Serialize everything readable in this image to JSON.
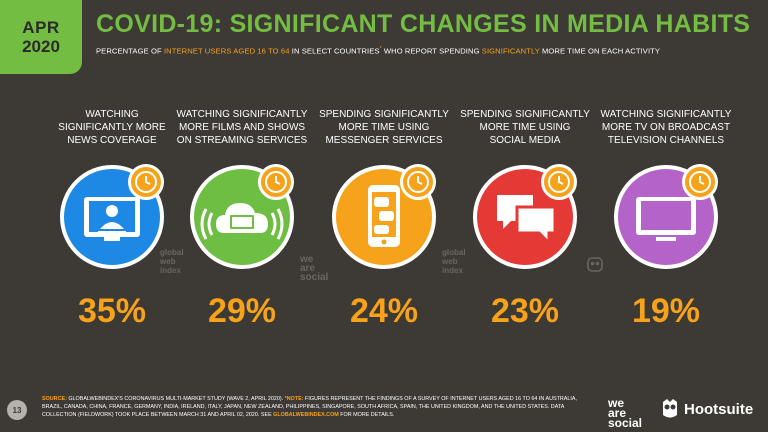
{
  "badge": {
    "month": "APR",
    "year": "2020"
  },
  "title": "COVID-19: SIGNIFICANT CHANGES IN MEDIA HABITS",
  "subtitle": {
    "p1": "PERCENTAGE OF ",
    "p2": "INTERNET USERS AGED 16 TO 64",
    "p3": " IN SELECT COUNTRIES",
    "p4": "*",
    "p5": " WHO REPORT SPENDING ",
    "p6": "SIGNIFICANTLY",
    "p7": " MORE TIME ON EACH ACTIVITY"
  },
  "chart_data": {
    "type": "bar",
    "categories": [
      "WATCHING SIGNIFICANTLY MORE NEWS COVERAGE",
      "WATCHING SIGNIFICANTLY MORE FILMS AND SHOWS ON STREAMING SERVICES",
      "SPENDING SIGNIFICANTLY MORE TIME USING MESSENGER SERVICES",
      "SPENDING SIGNIFICANTLY MORE TIME USING SOCIAL MEDIA",
      "WATCHING SIGNIFICANTLY MORE TV ON BROADCAST TELEVISION CHANNELS"
    ],
    "values": [
      35,
      29,
      24,
      23,
      19
    ],
    "value_labels": [
      "35%",
      "29%",
      "24%",
      "23%",
      "19%"
    ],
    "colors": [
      "#1e88e5",
      "#6fbe44",
      "#f7a21b",
      "#e53935",
      "#b463c8"
    ],
    "title": "COVID-19: SIGNIFICANT CHANGES IN MEDIA HABITS",
    "xlabel": "",
    "ylabel": ""
  },
  "columns": [
    {
      "l1": "WATCHING",
      "l2": "SIGNIFICANTLY MORE",
      "l3": "NEWS COVERAGE",
      "icon": "tv-news-icon"
    },
    {
      "l1": "WATCHING SIGNIFICANTLY",
      "l2": "MORE FILMS AND SHOWS",
      "l3": "ON STREAMING SERVICES",
      "icon": "streaming-cloud-icon"
    },
    {
      "l1": "SPENDING SIGNIFICANTLY",
      "l2": "MORE TIME USING",
      "l3": "MESSENGER SERVICES",
      "icon": "smartphone-chat-icon"
    },
    {
      "l1": "SPENDING SIGNIFICANTLY",
      "l2": "MORE TIME USING",
      "l3": "SOCIAL MEDIA",
      "icon": "speech-bubbles-icon"
    },
    {
      "l1": "WATCHING SIGNIFICANTLY",
      "l2": "MORE TV ON BROADCAST",
      "l3": "TELEVISION CHANNELS",
      "icon": "television-icon"
    }
  ],
  "watermarks": {
    "gwi_1": "global",
    "gwi_2": "web",
    "gwi_3": "index",
    "ws_1": "we",
    "ws_2": "are",
    "ws_3": "social"
  },
  "footer": {
    "page_number": "13",
    "source_label": "SOURCE:",
    "source_text": " GLOBALWEBINDEX'S CORONAVIRUS MULTI-MARKET STUDY (WAVE 2, APRIL 2020). ",
    "note_label": "*NOTE:",
    "note_text": " FIGURES REPRESENT THE FINDINGS OF A SURVEY OF INTERNET USERS AGED 16 TO 64 IN AUSTRALIA, BRAZIL, CANADA, CHINA, FRANCE, GERMANY, INDIA, IRELAND, ITALY, JAPAN, NEW ZEALAND, PHILIPPINES, SINGAPORE, SOUTH AFRICA, SPAIN, THE UNITED KINGDOM, AND THE UNITED STATES. DATA COLLECTION (FIELDWORK) TOOK PLACE BETWEEN MARCH 31 AND APRIL 02, 2020. SEE ",
    "link_text": "GLOBALWEBINDEX.COM",
    "tail_text": " FOR MORE DETAILS."
  },
  "logos": {
    "ws_1": "we",
    "ws_2": "are",
    "ws_3": "social",
    "hootsuite": "Hootsuite"
  }
}
